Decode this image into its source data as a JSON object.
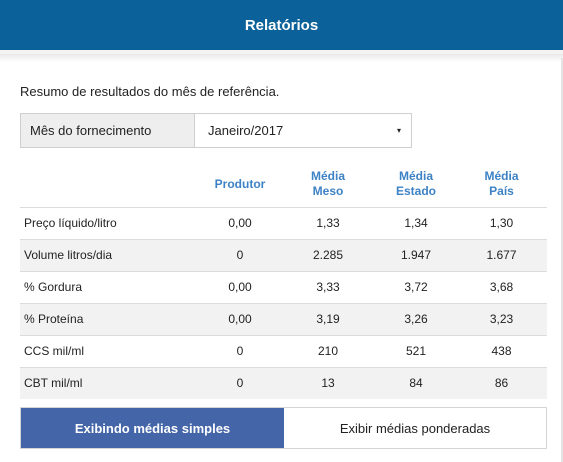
{
  "header": {
    "title": "Relatórios"
  },
  "intro": "Resumo de resultados do mês de referência.",
  "month": {
    "label": "Mês do fornecimento",
    "selected": "Janeiro/2017",
    "caret": "▾"
  },
  "table": {
    "headers": [
      "",
      "Produtor",
      "Média Meso",
      "Média Estado",
      "Média País"
    ],
    "rows": [
      {
        "label": "Preço líquido/litro",
        "produtor": "0,00",
        "meso": "1,33",
        "estado": "1,34",
        "pais": "1,30"
      },
      {
        "label": "Volume litros/dia",
        "produtor": "0",
        "meso": "2.285",
        "estado": "1.947",
        "pais": "1.677"
      },
      {
        "label": "% Gordura",
        "produtor": "0,00",
        "meso": "3,33",
        "estado": "3,72",
        "pais": "3,68"
      },
      {
        "label": "% Proteína",
        "produtor": "0,00",
        "meso": "3,19",
        "estado": "3,26",
        "pais": "3,23"
      },
      {
        "label": "CCS mil/ml",
        "produtor": "0",
        "meso": "210",
        "estado": "521",
        "pais": "438"
      },
      {
        "label": "CBT mil/ml",
        "produtor": "0",
        "meso": "13",
        "estado": "84",
        "pais": "86"
      }
    ]
  },
  "toggle": {
    "active": "Exibindo médias simples",
    "inactive": "Exibir médias ponderadas"
  },
  "colors": {
    "header_bg": "#0b6199",
    "header_text": "#3d82c4",
    "active_button": "#4466a8"
  }
}
